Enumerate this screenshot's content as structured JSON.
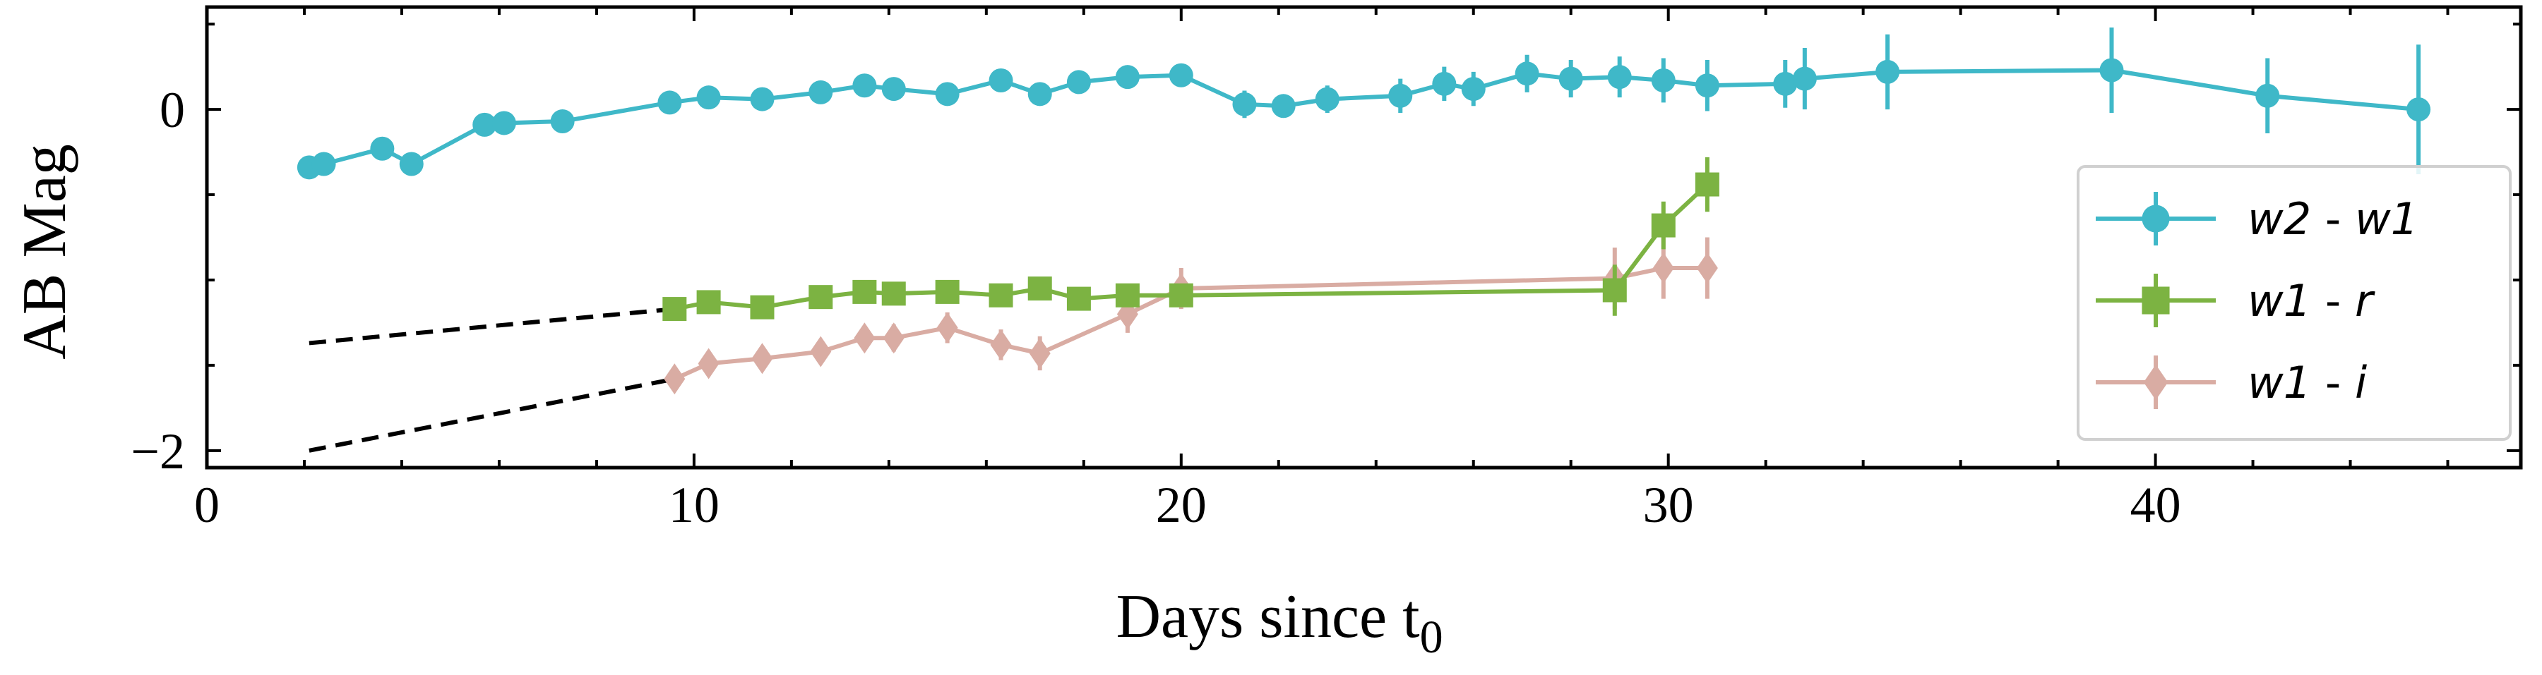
{
  "chart_data": {
    "type": "line",
    "xlabel": "Days since t",
    "xlabel_subscript": "0",
    "ylabel": "AB Mag",
    "xlim": [
      0,
      47.5
    ],
    "ylim": [
      -2.1,
      0.6
    ],
    "y_inverted": false,
    "grid": false,
    "legend_position": "right",
    "x_ticks": [
      {
        "value": 0,
        "label": "0"
      },
      {
        "value": 10,
        "label": "10"
      },
      {
        "value": 20,
        "label": "20"
      },
      {
        "value": 30,
        "label": "30"
      },
      {
        "value": 40,
        "label": "40"
      }
    ],
    "y_ticks": [
      {
        "value": 0,
        "label": "0"
      },
      {
        "value": -2,
        "label": "−2"
      }
    ],
    "series": [
      {
        "name_parts": [
          "w2",
          " - ",
          "w1"
        ],
        "color": "#3fb8c8",
        "marker": "circle",
        "points": [
          {
            "x": 2.1,
            "y": -0.34,
            "err": 0.03
          },
          {
            "x": 2.4,
            "y": -0.32,
            "err": 0.03
          },
          {
            "x": 3.6,
            "y": -0.23,
            "err": 0.03
          },
          {
            "x": 4.2,
            "y": -0.32,
            "err": 0.03
          },
          {
            "x": 5.7,
            "y": -0.09,
            "err": 0.03
          },
          {
            "x": 6.1,
            "y": -0.08,
            "err": 0.03
          },
          {
            "x": 7.3,
            "y": -0.07,
            "err": 0.04
          },
          {
            "x": 9.5,
            "y": 0.04,
            "err": 0.04
          },
          {
            "x": 10.3,
            "y": 0.07,
            "err": 0.04
          },
          {
            "x": 11.4,
            "y": 0.06,
            "err": 0.04
          },
          {
            "x": 12.6,
            "y": 0.1,
            "err": 0.04
          },
          {
            "x": 13.5,
            "y": 0.14,
            "err": 0.04
          },
          {
            "x": 14.1,
            "y": 0.12,
            "err": 0.04
          },
          {
            "x": 15.2,
            "y": 0.09,
            "err": 0.05
          },
          {
            "x": 16.3,
            "y": 0.17,
            "err": 0.05
          },
          {
            "x": 17.1,
            "y": 0.09,
            "err": 0.06
          },
          {
            "x": 17.9,
            "y": 0.16,
            "err": 0.05
          },
          {
            "x": 18.9,
            "y": 0.19,
            "err": 0.05
          },
          {
            "x": 20.0,
            "y": 0.2,
            "err": 0.05
          },
          {
            "x": 21.3,
            "y": 0.03,
            "err": 0.08
          },
          {
            "x": 22.1,
            "y": 0.02,
            "err": 0.05
          },
          {
            "x": 23.0,
            "y": 0.06,
            "err": 0.08
          },
          {
            "x": 24.5,
            "y": 0.08,
            "err": 0.1
          },
          {
            "x": 25.4,
            "y": 0.15,
            "err": 0.1
          },
          {
            "x": 26.0,
            "y": 0.12,
            "err": 0.1
          },
          {
            "x": 27.1,
            "y": 0.21,
            "err": 0.11
          },
          {
            "x": 28.0,
            "y": 0.18,
            "err": 0.11
          },
          {
            "x": 29.0,
            "y": 0.19,
            "err": 0.12
          },
          {
            "x": 29.9,
            "y": 0.17,
            "err": 0.13
          },
          {
            "x": 30.8,
            "y": 0.14,
            "err": 0.15
          },
          {
            "x": 32.4,
            "y": 0.15,
            "err": 0.14
          },
          {
            "x": 32.8,
            "y": 0.18,
            "err": 0.18
          },
          {
            "x": 34.5,
            "y": 0.22,
            "err": 0.22
          },
          {
            "x": 39.1,
            "y": 0.23,
            "err": 0.25
          },
          {
            "x": 42.3,
            "y": 0.08,
            "err": 0.22
          },
          {
            "x": 45.4,
            "y": 0.0,
            "err": 0.38
          }
        ]
      },
      {
        "name_parts": [
          "w1",
          " - ",
          "r"
        ],
        "color": "#7cb342",
        "marker": "square",
        "points": [
          {
            "x": 9.6,
            "y": -1.17,
            "err": 0.04
          },
          {
            "x": 10.3,
            "y": -1.13,
            "err": 0.04
          },
          {
            "x": 11.4,
            "y": -1.16,
            "err": 0.04
          },
          {
            "x": 12.6,
            "y": -1.1,
            "err": 0.04
          },
          {
            "x": 13.5,
            "y": -1.07,
            "err": 0.04
          },
          {
            "x": 14.1,
            "y": -1.08,
            "err": 0.04
          },
          {
            "x": 15.2,
            "y": -1.07,
            "err": 0.04
          },
          {
            "x": 16.3,
            "y": -1.09,
            "err": 0.05
          },
          {
            "x": 17.1,
            "y": -1.05,
            "err": 0.05
          },
          {
            "x": 17.9,
            "y": -1.11,
            "err": 0.05
          },
          {
            "x": 18.9,
            "y": -1.09,
            "err": 0.05
          },
          {
            "x": 20.0,
            "y": -1.09,
            "err": 0.05
          },
          {
            "x": 28.9,
            "y": -1.06,
            "err": 0.15
          },
          {
            "x": 29.9,
            "y": -0.68,
            "err": 0.14
          },
          {
            "x": 30.8,
            "y": -0.44,
            "err": 0.16
          }
        ]
      },
      {
        "name_parts": [
          "w1",
          " - ",
          "i"
        ],
        "color": "#d9aca3",
        "marker": "diamond",
        "points": [
          {
            "x": 9.6,
            "y": -1.58,
            "err": 0.06
          },
          {
            "x": 10.3,
            "y": -1.49,
            "err": 0.07
          },
          {
            "x": 11.4,
            "y": -1.46,
            "err": 0.07
          },
          {
            "x": 12.6,
            "y": -1.42,
            "err": 0.07
          },
          {
            "x": 13.5,
            "y": -1.34,
            "err": 0.07
          },
          {
            "x": 14.1,
            "y": -1.34,
            "err": 0.08
          },
          {
            "x": 15.2,
            "y": -1.28,
            "err": 0.09
          },
          {
            "x": 16.3,
            "y": -1.38,
            "err": 0.09
          },
          {
            "x": 17.1,
            "y": -1.43,
            "err": 0.1
          },
          {
            "x": 18.9,
            "y": -1.2,
            "err": 0.11
          },
          {
            "x": 20.0,
            "y": -1.05,
            "err": 0.12
          },
          {
            "x": 28.9,
            "y": -0.99,
            "err": 0.18
          },
          {
            "x": 29.9,
            "y": -0.93,
            "err": 0.18
          },
          {
            "x": 30.8,
            "y": -0.93,
            "err": 0.18
          }
        ]
      }
    ],
    "extrapolations": [
      {
        "style": "dashed",
        "color": "#000000",
        "from": {
          "x": 2.1,
          "y": -1.37
        },
        "to": {
          "x": 9.6,
          "y": -1.17
        }
      },
      {
        "style": "dashed",
        "color": "#000000",
        "from": {
          "x": 2.1,
          "y": -2.0
        },
        "to": {
          "x": 9.6,
          "y": -1.58
        }
      }
    ]
  }
}
